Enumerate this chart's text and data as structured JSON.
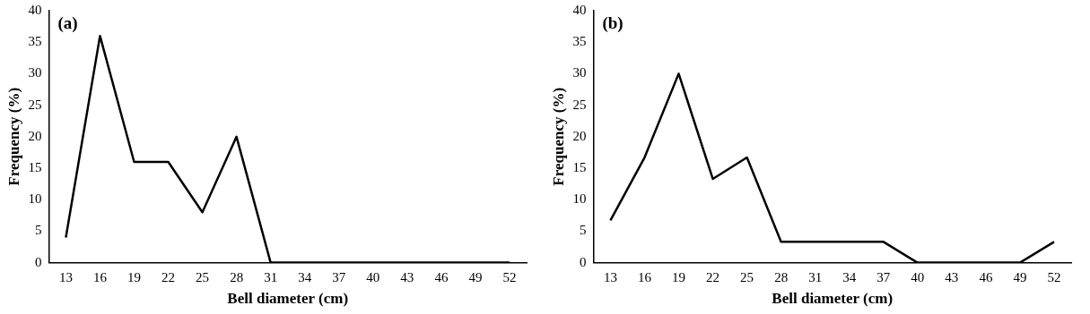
{
  "chart_data": [
    {
      "type": "line",
      "xlabel": "Bell diameter (cm)",
      "ylabel": "Frequency (%)",
      "annotations": [
        "(a)"
      ],
      "categories": [
        "13",
        "16",
        "19",
        "22",
        "25",
        "28",
        "31",
        "34",
        "37",
        "40",
        "43",
        "46",
        "49",
        "52"
      ],
      "series": [
        {
          "color": "#000000",
          "values": [
            4,
            36,
            16,
            16,
            8,
            20,
            0,
            0,
            0,
            0,
            0,
            0,
            0,
            0
          ]
        }
      ],
      "ylim": [
        0,
        40
      ],
      "yticks": [
        0,
        5,
        10,
        15,
        20,
        25,
        30,
        35,
        40
      ],
      "grid": false,
      "legend": false,
      "marker": "none",
      "line_style": "solid"
    },
    {
      "type": "line",
      "xlabel": "Bell diameter (cm)",
      "ylabel": "Frequency (%)",
      "annotations": [
        "(b)"
      ],
      "categories": [
        "13",
        "16",
        "19",
        "22",
        "25",
        "28",
        "31",
        "34",
        "37",
        "40",
        "43",
        "46",
        "49",
        "52"
      ],
      "series": [
        {
          "color": "#000000",
          "values": [
            6.7,
            16.7,
            30,
            13.3,
            16.7,
            3.3,
            3.3,
            3.3,
            3.3,
            0,
            0,
            0,
            0,
            3.3
          ]
        }
      ],
      "ylim": [
        0,
        40
      ],
      "yticks": [
        0,
        5,
        10,
        15,
        20,
        25,
        30,
        35,
        40
      ],
      "grid": false,
      "legend": false,
      "marker": "none",
      "line_style": "solid"
    }
  ]
}
